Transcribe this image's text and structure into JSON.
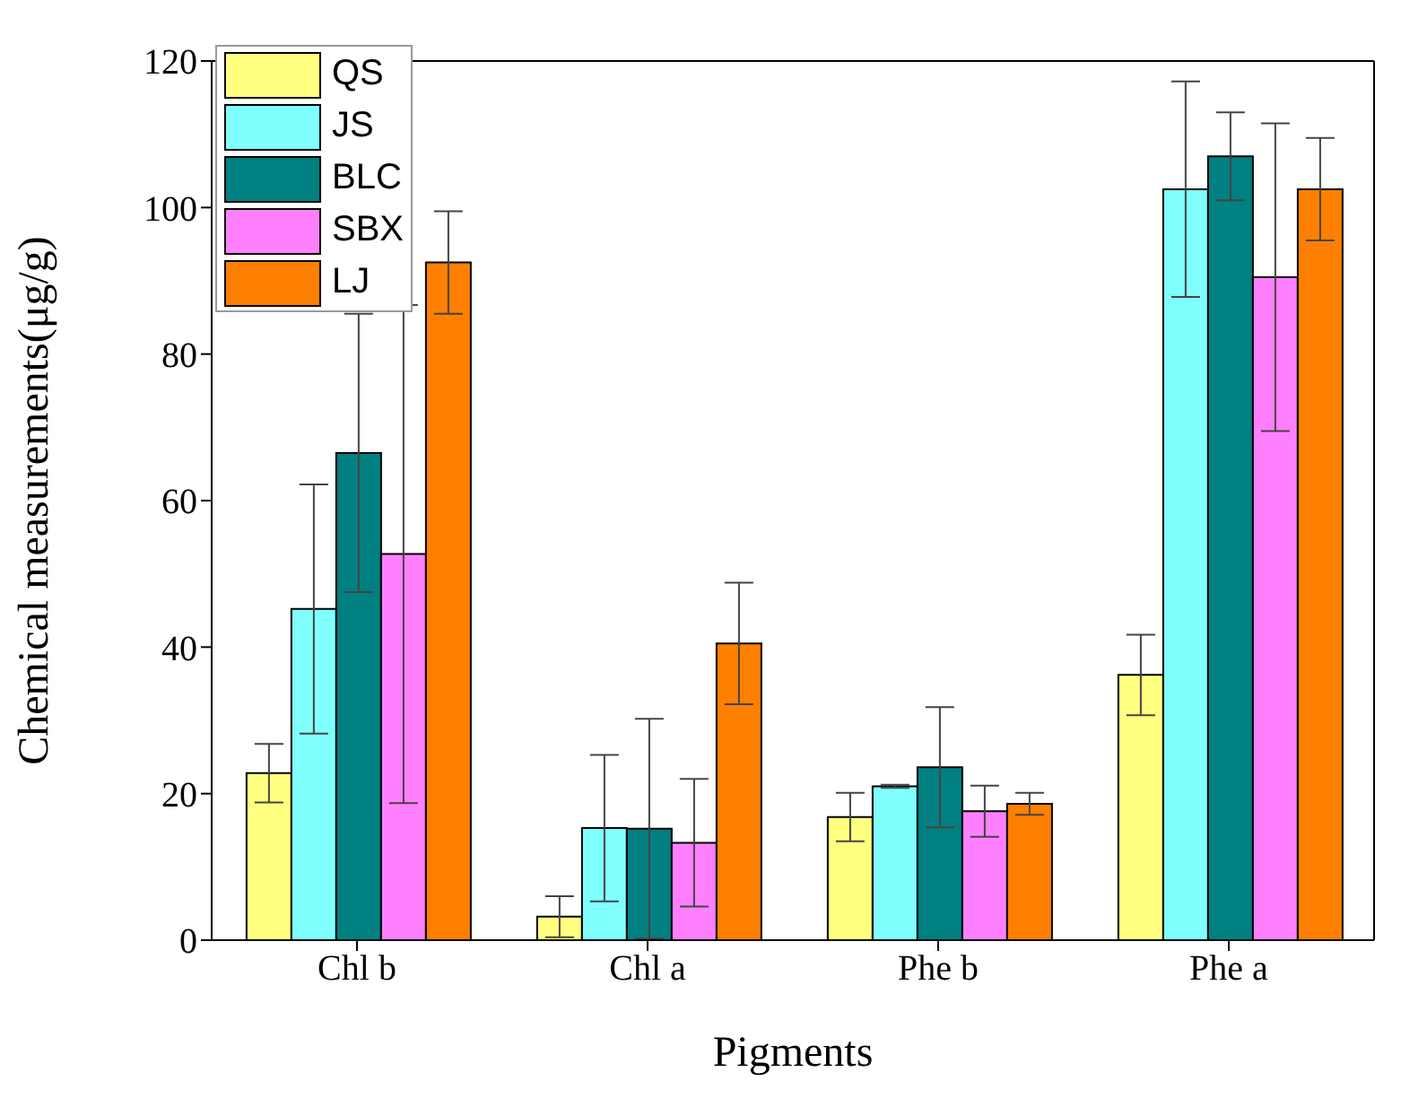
{
  "chart_data": {
    "type": "bar",
    "xlabel": "Pigments",
    "ylabel": "Chemical measurements(μg/g)",
    "categories": [
      "Chl b",
      "Chl a",
      "Phe b",
      "Phe a"
    ],
    "series": [
      {
        "name": "QS",
        "color": "#ffff80",
        "values": [
          22.8,
          3.2,
          16.8,
          36.2
        ],
        "errors": [
          4,
          2.8,
          3.3,
          5.5
        ]
      },
      {
        "name": "JS",
        "color": "#80ffff",
        "values": [
          45.2,
          15.3,
          21,
          102.5
        ],
        "errors": [
          17,
          10,
          0.2,
          14.7
        ]
      },
      {
        "name": "BLC",
        "color": "#008080",
        "values": [
          66.5,
          15.2,
          23.6,
          107
        ],
        "errors": [
          19,
          15,
          8.2,
          6
        ]
      },
      {
        "name": "SBX",
        "color": "#ff80ff",
        "values": [
          52.7,
          13.3,
          17.6,
          90.5
        ],
        "errors": [
          34,
          8.7,
          3.5,
          21
        ]
      },
      {
        "name": "LJ",
        "color": "#ff8000",
        "values": [
          92.5,
          40.5,
          18.6,
          102.5
        ],
        "errors": [
          7,
          8.3,
          1.5,
          7
        ]
      }
    ],
    "ylim": [
      0,
      120
    ],
    "yticks": [
      0,
      20,
      40,
      60,
      80,
      100,
      120
    ],
    "grid": false,
    "legend": "top left"
  }
}
